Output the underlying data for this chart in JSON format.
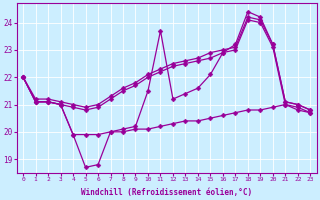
{
  "xlabel": "Windchill (Refroidissement éolien,°C)",
  "background_color": "#cceeff",
  "line_color": "#990099",
  "xlim": [
    -0.5,
    23.5
  ],
  "ylim": [
    18.5,
    24.7
  ],
  "yticks": [
    19,
    20,
    21,
    22,
    23,
    24
  ],
  "xticks": [
    0,
    1,
    2,
    3,
    4,
    5,
    6,
    7,
    8,
    9,
    10,
    11,
    12,
    13,
    14,
    15,
    16,
    17,
    18,
    19,
    20,
    21,
    22,
    23
  ],
  "series": [
    {
      "x": [
        0,
        1,
        2,
        3,
        4,
        5,
        6,
        7,
        8,
        9,
        10,
        11,
        12,
        13,
        14,
        15,
        16,
        17,
        18,
        19,
        20,
        21,
        22,
        23
      ],
      "y": [
        22.0,
        21.1,
        21.1,
        21.0,
        19.9,
        18.7,
        18.8,
        20.0,
        20.1,
        20.2,
        21.5,
        23.7,
        21.2,
        21.4,
        21.6,
        22.1,
        22.9,
        23.2,
        24.4,
        24.2,
        23.2,
        21.1,
        21.0,
        20.8
      ]
    },
    {
      "x": [
        0,
        1,
        2,
        3,
        4,
        5,
        6,
        7,
        8,
        9,
        10,
        11,
        12,
        13,
        14,
        15,
        16,
        17,
        18,
        19,
        20,
        21,
        22,
        23
      ],
      "y": [
        22.0,
        21.2,
        21.2,
        21.1,
        21.0,
        20.9,
        21.0,
        21.3,
        21.6,
        21.8,
        22.1,
        22.3,
        22.5,
        22.6,
        22.7,
        22.9,
        23.0,
        23.1,
        24.2,
        24.1,
        23.2,
        21.1,
        21.0,
        20.8
      ]
    },
    {
      "x": [
        0,
        1,
        2,
        3,
        4,
        5,
        6,
        7,
        8,
        9,
        10,
        11,
        12,
        13,
        14,
        15,
        16,
        17,
        18,
        19,
        20,
        21,
        22,
        23
      ],
      "y": [
        22.0,
        21.1,
        21.1,
        21.0,
        20.9,
        20.8,
        20.9,
        21.2,
        21.5,
        21.7,
        22.0,
        22.2,
        22.4,
        22.5,
        22.6,
        22.7,
        22.9,
        23.0,
        24.1,
        24.0,
        23.1,
        21.0,
        20.9,
        20.7
      ]
    },
    {
      "x": [
        0,
        1,
        2,
        3,
        4,
        5,
        6,
        7,
        8,
        9,
        10,
        11,
        12,
        13,
        14,
        15,
        16,
        17,
        18,
        19,
        20,
        21,
        22,
        23
      ],
      "y": [
        22.0,
        21.1,
        21.1,
        21.0,
        19.9,
        19.9,
        19.9,
        20.0,
        20.0,
        20.1,
        20.1,
        20.2,
        20.3,
        20.4,
        20.4,
        20.5,
        20.6,
        20.7,
        20.8,
        20.8,
        20.9,
        21.0,
        20.8,
        20.7
      ]
    }
  ]
}
